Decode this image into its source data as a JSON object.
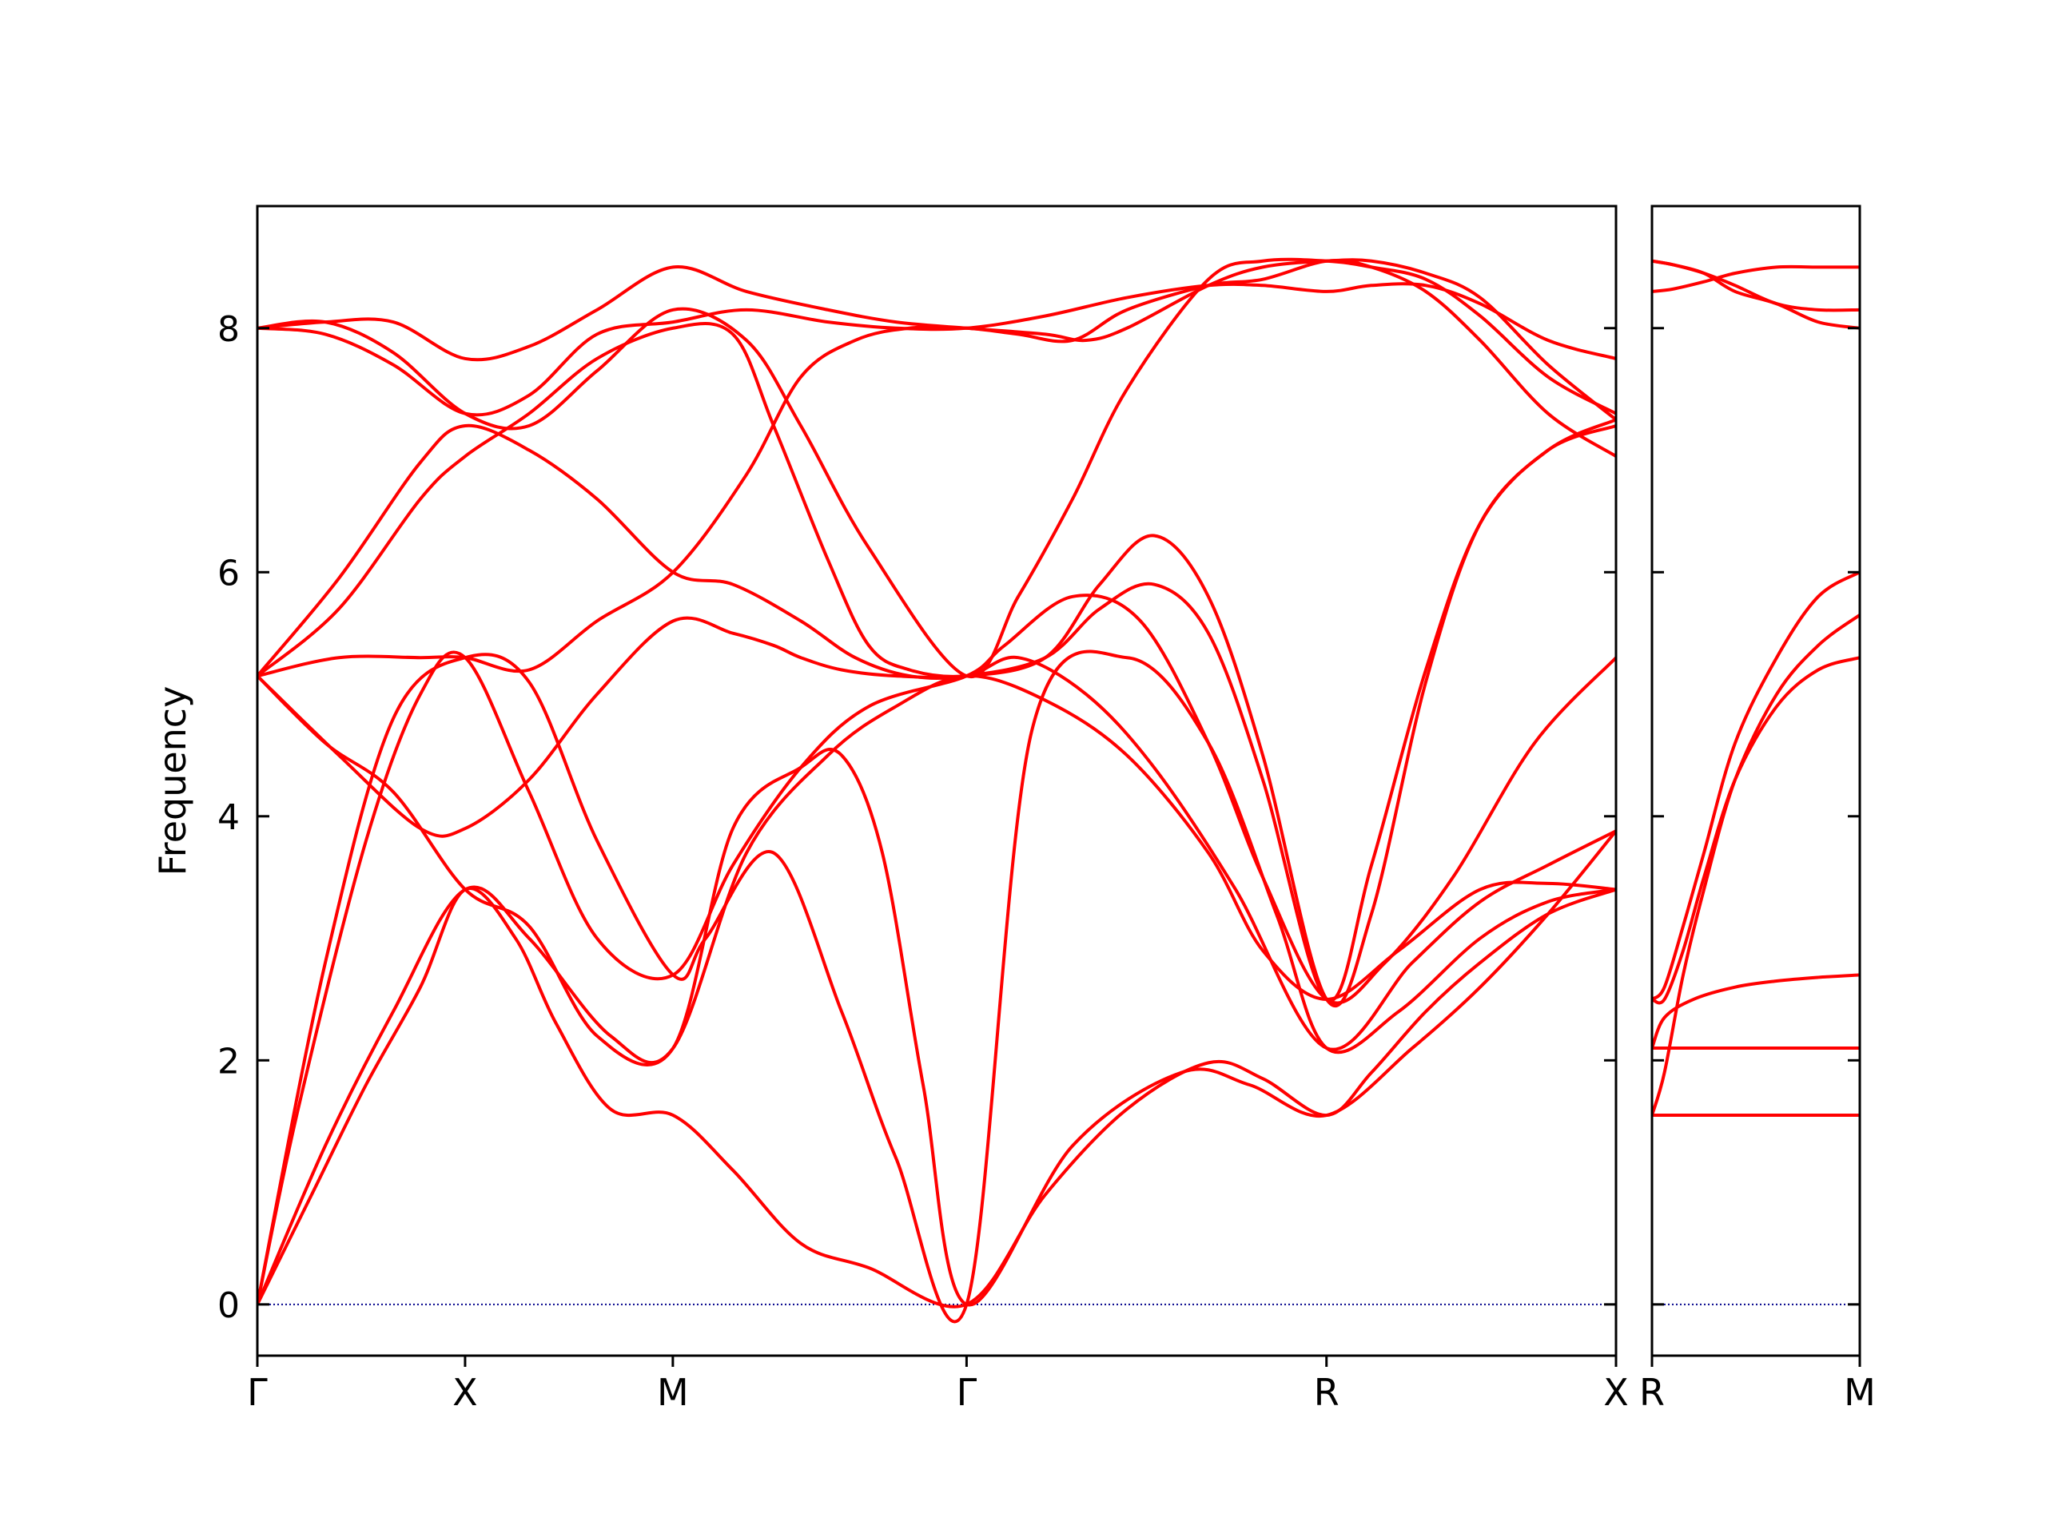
{
  "chart_data": {
    "type": "line",
    "ylabel": "Frequency",
    "xlabel": "",
    "title": "",
    "ylim": [
      -0.42,
      9.0
    ],
    "yticks": [
      0,
      2,
      4,
      6,
      8
    ],
    "ytick_labels": [
      "0",
      "2",
      "4",
      "6",
      "8"
    ],
    "line_color": "#ff0000",
    "zero_line_color": "#00008b",
    "panels": [
      {
        "name": "main",
        "xlim": [
          0,
          1.0
        ],
        "ticks": [
          {
            "x": 0.0,
            "label": "Γ"
          },
          {
            "x": 0.1529,
            "label": "X"
          },
          {
            "x": 0.3058,
            "label": "M"
          },
          {
            "x": 0.522,
            "label": "Γ"
          },
          {
            "x": 0.7869,
            "label": "R"
          },
          {
            "x": 1.0,
            "label": "X"
          }
        ],
        "bands": [
          {
            "x": [
              0,
              0.05,
              0.1,
              0.153,
              0.2,
              0.26,
              0.306,
              0.36,
              0.42,
              0.47,
              0.522,
              0.58,
              0.64,
              0.7,
              0.74,
              0.787,
              0.84,
              0.9,
              0.95,
              1.0
            ],
            "y": [
              0,
              1.3,
              2.4,
              3.4,
              3.0,
              2.2,
              2.1,
              3.7,
              4.5,
              4.9,
              5.15,
              4.95,
              4.5,
              3.7,
              2.9,
              2.5,
              2.9,
              3.4,
              3.45,
              3.4
            ]
          },
          {
            "x": [
              0,
              0.03,
              0.08,
              0.12,
              0.153,
              0.2,
              0.25,
              0.306,
              0.35,
              0.4,
              0.45,
              0.522,
              0.55,
              0.6,
              0.65,
              0.7,
              0.74,
              0.787,
              0.83,
              0.88,
              0.94,
              1.0
            ],
            "y": [
              0,
              1.6,
              3.8,
              5.0,
              5.3,
              4.2,
              3.0,
              2.7,
              3.6,
              4.4,
              4.9,
              5.15,
              5.4,
              5.8,
              5.6,
              4.6,
              3.5,
              2.5,
              2.8,
              3.5,
              4.6,
              5.3
            ]
          },
          {
            "x": [
              0,
              0.06,
              0.12,
              0.153,
              0.2,
              0.25,
              0.306,
              0.35,
              0.38,
              0.4,
              0.43,
              0.47,
              0.522,
              0.56,
              0.61,
              0.66,
              0.72,
              0.787,
              0.85,
              0.9,
              0.95,
              1.0
            ],
            "y": [
              5.15,
              4.5,
              3.9,
              3.9,
              4.3,
              5.0,
              5.6,
              5.5,
              5.4,
              5.3,
              5.2,
              5.15,
              5.15,
              5.3,
              5.0,
              4.4,
              3.4,
              2.1,
              2.8,
              3.3,
              3.6,
              3.88
            ]
          },
          {
            "x": [
              0,
              0.05,
              0.1,
              0.153,
              0.2,
              0.25,
              0.306,
              0.35,
              0.4,
              0.43,
              0.46,
              0.49,
              0.522,
              0.6,
              0.68,
              0.73,
              0.787,
              0.85,
              0.9,
              0.95,
              1.0
            ],
            "y": [
              5.15,
              4.6,
              4.2,
              3.4,
              3.1,
              2.2,
              2.1,
              3.9,
              4.4,
              4.5,
              3.7,
              1.8,
              0,
              1.3,
              1.9,
              1.8,
              1.55,
              2.1,
              2.6,
              3.2,
              3.88
            ]
          },
          {
            "x": [
              0,
              0.05,
              0.1,
              0.153,
              0.2,
              0.25,
              0.306,
              0.33,
              0.38,
              0.43,
              0.47,
              0.522,
              0.57,
              0.64,
              0.7,
              0.75,
              0.787,
              0.84,
              0.9,
              0.95,
              1.0
            ],
            "y": [
              0,
              2.8,
              4.8,
              5.3,
              5.1,
              3.8,
              2.7,
              3.0,
              3.7,
              2.4,
              1.2,
              0,
              4.7,
              5.3,
              4.6,
              3.2,
              2.1,
              2.4,
              3.0,
              3.3,
              3.4
            ]
          },
          {
            "x": [
              0,
              0.04,
              0.08,
              0.12,
              0.153,
              0.19,
              0.22,
              0.26,
              0.306,
              0.35,
              0.4,
              0.45,
              0.522,
              0.58,
              0.64,
              0.7,
              0.74,
              0.787,
              0.82,
              0.86,
              0.9,
              0.95,
              1.0
            ],
            "y": [
              0,
              0.9,
              1.8,
              2.6,
              3.4,
              3.0,
              2.3,
              1.6,
              1.55,
              1.1,
              0.5,
              0.3,
              0,
              0.9,
              1.6,
              1.98,
              1.85,
              1.55,
              1.9,
              2.4,
              2.8,
              3.2,
              3.4
            ]
          },
          {
            "x": [
              0,
              0.06,
              0.12,
              0.153,
              0.2,
              0.25,
              0.306,
              0.35,
              0.4,
              0.44,
              0.48,
              0.522,
              0.58,
              0.62,
              0.66,
              0.7,
              0.74,
              0.787,
              0.82,
              0.86,
              0.9,
              0.95,
              1.0
            ],
            "y": [
              5.15,
              5.95,
              6.9,
              7.2,
              7.0,
              6.6,
              6.0,
              5.9,
              5.6,
              5.3,
              5.15,
              5.15,
              5.3,
              5.7,
              5.9,
              5.5,
              4.3,
              2.5,
              3.6,
              5.2,
              6.4,
              7.0,
              7.2
            ]
          },
          {
            "x": [
              0,
              0.06,
              0.12,
              0.153,
              0.2,
              0.25,
              0.306,
              0.35,
              0.38,
              0.42,
              0.45,
              0.48,
              0.522,
              0.58,
              0.62,
              0.66,
              0.7,
              0.74,
              0.787,
              0.82,
              0.86,
              0.9,
              0.95,
              1.0
            ],
            "y": [
              5.15,
              5.7,
              6.6,
              6.95,
              7.3,
              7.75,
              8.0,
              7.95,
              7.2,
              6.1,
              5.4,
              5.2,
              5.15,
              5.3,
              5.9,
              6.3,
              5.8,
              4.5,
              2.5,
              3.2,
              5.1,
              6.4,
              7.0,
              7.25
            ]
          },
          {
            "x": [
              0,
              0.06,
              0.12,
              0.153,
              0.2,
              0.25,
              0.306,
              0.36,
              0.4,
              0.44,
              0.48,
              0.522,
              0.56,
              0.6,
              0.64,
              0.7,
              0.74,
              0.787,
              0.82,
              0.86,
              0.9,
              0.95,
              1.0
            ],
            "y": [
              5.15,
              5.3,
              5.3,
              5.3,
              5.2,
              5.6,
              6.0,
              6.8,
              7.6,
              7.9,
              8.0,
              8.0,
              7.95,
              7.9,
              8.15,
              8.35,
              8.4,
              8.55,
              8.5,
              8.3,
              7.9,
              7.3,
              6.95
            ]
          },
          {
            "x": [
              0,
              0.05,
              0.1,
              0.153,
              0.2,
              0.25,
              0.306,
              0.36,
              0.4,
              0.45,
              0.522,
              0.56,
              0.6,
              0.64,
              0.7,
              0.74,
              0.787,
              0.82,
              0.86,
              0.9,
              0.95,
              1.0
            ],
            "y": [
              8.0,
              8.05,
              7.8,
              7.3,
              7.2,
              7.65,
              8.15,
              7.9,
              7.2,
              6.2,
              5.15,
              5.8,
              6.6,
              7.5,
              8.4,
              8.55,
              8.55,
              8.5,
              8.4,
              8.1,
              7.6,
              7.3
            ]
          },
          {
            "x": [
              0,
              0.05,
              0.1,
              0.153,
              0.2,
              0.25,
              0.306,
              0.36,
              0.42,
              0.47,
              0.522,
              0.58,
              0.64,
              0.7,
              0.74,
              0.787,
              0.82,
              0.86,
              0.9,
              0.95,
              1.0
            ],
            "y": [
              8.0,
              7.95,
              7.7,
              7.3,
              7.45,
              7.95,
              8.05,
              8.15,
              8.05,
              8.0,
              8.0,
              8.1,
              8.25,
              8.35,
              8.35,
              8.3,
              8.35,
              8.35,
              8.2,
              7.9,
              7.75
            ]
          },
          {
            "x": [
              0,
              0.05,
              0.1,
              0.153,
              0.2,
              0.25,
              0.306,
              0.36,
              0.42,
              0.47,
              0.522,
              0.58,
              0.61,
              0.64,
              0.7,
              0.74,
              0.787,
              0.82,
              0.86,
              0.9,
              0.95,
              1.0
            ],
            "y": [
              8.0,
              8.05,
              8.05,
              7.75,
              7.85,
              8.15,
              8.5,
              8.3,
              8.15,
              8.05,
              8.0,
              7.95,
              7.9,
              8.0,
              8.35,
              8.5,
              8.55,
              8.55,
              8.45,
              8.25,
              7.7,
              7.25
            ]
          }
        ]
      },
      {
        "name": "right",
        "xlim": [
          0,
          1.0
        ],
        "ticks": [
          {
            "x": 0.0,
            "label": "R"
          },
          {
            "x": 1.0,
            "label": "M"
          }
        ],
        "bands": [
          {
            "x": [
              0,
              0.05,
              0.15,
              0.3,
              0.5,
              0.7,
              1.0
            ],
            "y": [
              1.55,
              1.55,
              1.55,
              1.55,
              1.55,
              1.55,
              1.55
            ]
          },
          {
            "x": [
              0,
              0.05,
              0.15,
              0.3,
              0.5,
              0.7,
              1.0
            ],
            "y": [
              2.1,
              2.1,
              2.1,
              2.1,
              2.1,
              2.1,
              2.1
            ]
          },
          {
            "x": [
              0,
              0.06,
              0.2,
              0.4,
              0.6,
              0.8,
              1.0
            ],
            "y": [
              2.1,
              2.35,
              2.5,
              2.6,
              2.65,
              2.68,
              2.7
            ]
          },
          {
            "x": [
              0,
              0.06,
              0.15,
              0.25,
              0.4,
              0.6,
              0.8,
              1.0
            ],
            "y": [
              1.55,
              1.9,
              2.7,
              3.4,
              4.3,
              5.0,
              5.4,
              5.65
            ]
          },
          {
            "x": [
              0,
              0.06,
              0.15,
              0.25,
              0.4,
              0.6,
              0.8,
              1.0
            ],
            "y": [
              2.5,
              2.6,
              3.1,
              3.7,
              4.6,
              5.3,
              5.8,
              6.0
            ]
          },
          {
            "x": [
              0,
              0.06,
              0.15,
              0.25,
              0.4,
              0.6,
              0.8,
              1.0
            ],
            "y": [
              2.5,
              2.5,
              2.9,
              3.5,
              4.3,
              4.9,
              5.2,
              5.3
            ]
          },
          {
            "x": [
              0,
              0.1,
              0.25,
              0.4,
              0.6,
              0.8,
              1.0
            ],
            "y": [
              8.55,
              8.52,
              8.45,
              8.35,
              8.2,
              8.15,
              8.15
            ]
          },
          {
            "x": [
              0,
              0.1,
              0.25,
              0.4,
              0.6,
              0.8,
              1.0
            ],
            "y": [
              8.55,
              8.52,
              8.45,
              8.3,
              8.2,
              8.05,
              8.0
            ]
          },
          {
            "x": [
              0,
              0.1,
              0.25,
              0.4,
              0.6,
              0.8,
              1.0
            ],
            "y": [
              8.3,
              8.32,
              8.38,
              8.45,
              8.5,
              8.5,
              8.5
            ]
          }
        ]
      }
    ]
  }
}
